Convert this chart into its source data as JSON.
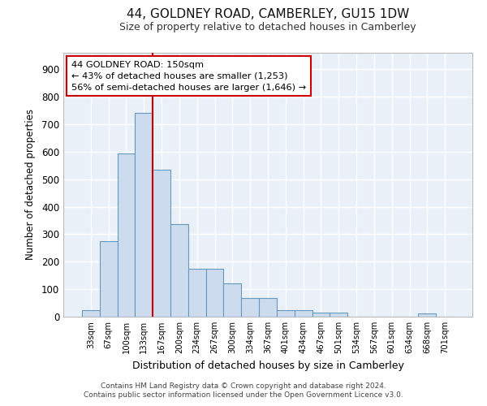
{
  "title": "44, GOLDNEY ROAD, CAMBERLEY, GU15 1DW",
  "subtitle": "Size of property relative to detached houses in Camberley",
  "xlabel": "Distribution of detached houses by size in Camberley",
  "ylabel": "Number of detached properties",
  "bar_color": "#ccdcee",
  "bar_edge_color": "#6699bb",
  "categories": [
    "33sqm",
    "67sqm",
    "100sqm",
    "133sqm",
    "167sqm",
    "200sqm",
    "234sqm",
    "267sqm",
    "300sqm",
    "334sqm",
    "367sqm",
    "401sqm",
    "434sqm",
    "467sqm",
    "501sqm",
    "534sqm",
    "567sqm",
    "601sqm",
    "634sqm",
    "668sqm",
    "701sqm"
  ],
  "values": [
    25,
    275,
    595,
    740,
    535,
    338,
    175,
    175,
    120,
    68,
    68,
    25,
    25,
    15,
    15,
    0,
    0,
    0,
    0,
    12,
    0
  ],
  "ylim": [
    0,
    960
  ],
  "yticks": [
    0,
    100,
    200,
    300,
    400,
    500,
    600,
    700,
    800,
    900
  ],
  "property_line_color": "#cc0000",
  "annotation_line1": "44 GOLDNEY ROAD: 150sqm",
  "annotation_line2": "← 43% of detached houses are smaller (1,253)",
  "annotation_line3": "56% of semi-detached houses are larger (1,646) →",
  "footer1": "Contains HM Land Registry data © Crown copyright and database right 2024.",
  "footer2": "Contains public sector information licensed under the Open Government Licence v3.0.",
  "bg_color": "#ffffff",
  "plot_bg_color": "#eaf0f8",
  "grid_color": "#ffffff",
  "annotation_box_color": "#ffffff",
  "annotation_box_edge": "#cc0000"
}
